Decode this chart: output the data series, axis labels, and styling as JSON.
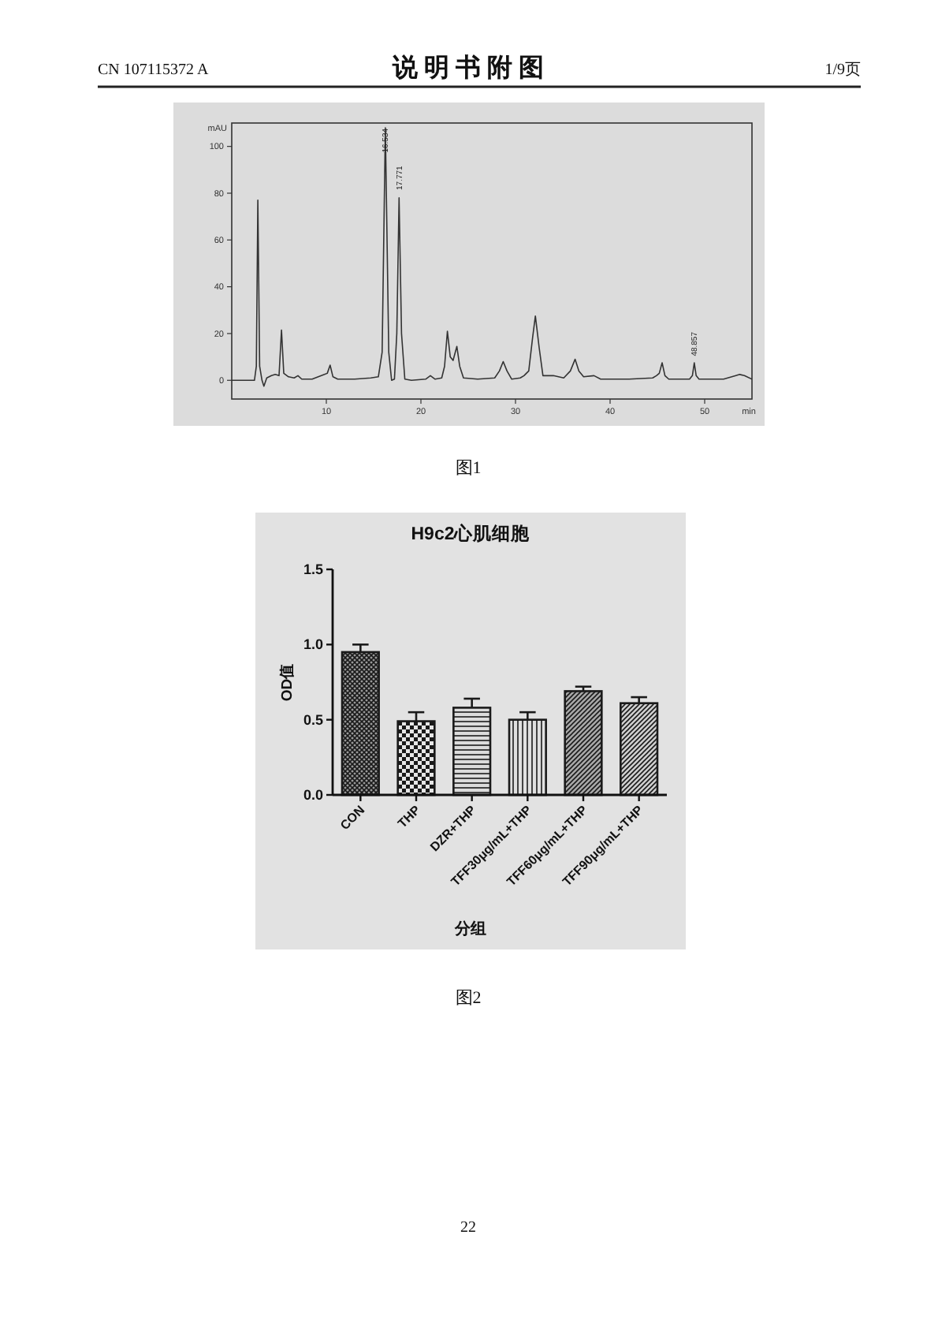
{
  "chart_data": [
    {
      "type": "line",
      "xlabel": "min",
      "ylabel": "mAU",
      "x": [
        0,
        2.4,
        2.6,
        2.76,
        2.95,
        3.2,
        3.4,
        3.7,
        4.2,
        4.6,
        5.0,
        5.26,
        5.5,
        6.0,
        6.6,
        7.0,
        7.4,
        8.5,
        9.8,
        10.1,
        10.4,
        10.7,
        11.2,
        13.0,
        14.7,
        15.5,
        15.9,
        16.24,
        16.6,
        16.9,
        17.2,
        17.45,
        17.69,
        17.95,
        18.3,
        19.0,
        20.5,
        21.0,
        21.5,
        22.2,
        22.5,
        22.8,
        23.1,
        23.4,
        23.8,
        24.1,
        24.5,
        26.0,
        27.8,
        28.3,
        28.7,
        29.1,
        29.6,
        30.5,
        30.9,
        31.4,
        31.8,
        32.1,
        32.5,
        32.9,
        34.0,
        35.1,
        35.8,
        36.3,
        36.7,
        37.2,
        38.3,
        39.0,
        42.0,
        44.5,
        44.9,
        45.2,
        45.5,
        45.8,
        46.2,
        48.4,
        48.7,
        48.9,
        49.1,
        49.4,
        52.0,
        53.3,
        53.7,
        54.2,
        55.0
      ],
      "series": [
        {
          "color": "#333333",
          "values": [
            0,
            0,
            6,
            77,
            6,
            0,
            -2.5,
            1,
            2,
            2.5,
            2,
            21.5,
            3,
            1.5,
            1,
            2,
            0.5,
            0.5,
            2.5,
            3,
            6.5,
            1.5,
            0.5,
            0.5,
            1,
            1.5,
            12,
            108,
            12,
            0,
            0.5,
            20,
            78,
            20,
            0.5,
            0,
            0.5,
            2,
            0.5,
            1,
            6,
            21,
            10,
            8.5,
            14.5,
            6,
            1,
            0.5,
            1,
            4,
            8,
            4,
            0.5,
            1,
            2,
            4,
            18,
            27.5,
            14,
            2,
            2,
            1,
            4,
            9,
            4,
            1.5,
            2,
            0.5,
            0.5,
            1,
            2,
            3,
            7.5,
            2,
            0.5,
            0.5,
            2,
            7.5,
            2,
            0.5,
            0.5,
            2,
            2.5,
            2,
            0.5
          ]
        }
      ],
      "xlim": [
        0,
        55
      ],
      "ylim": [
        -8,
        110
      ],
      "xticks": [
        10,
        20,
        30,
        40,
        50
      ],
      "yticks": [
        0,
        20,
        40,
        60,
        80,
        100
      ],
      "annotations": [
        "CN 107115372 A",
        "说 明 书 附 图",
        "1/9页",
        {
          "text": "16.534",
          "x": 16.24,
          "y": 96
        },
        {
          "text": "17.771",
          "x": 17.69,
          "y": 80
        },
        {
          "text": "48.857",
          "x": 48.9,
          "y": 9
        },
        "图1"
      ]
    },
    {
      "type": "bar",
      "title": "H9c2心肌细胞",
      "xlabel": "分组",
      "ylabel": "OD值",
      "categories": [
        "CON",
        "THP",
        "DZR+THP",
        "TFF30μg/mL+THP",
        "TFF60μg/mL+THP",
        "TFF90μg/mL+THP"
      ],
      "values": [
        0.95,
        0.49,
        0.58,
        0.5,
        0.69,
        0.61
      ],
      "errors": [
        0.05,
        0.06,
        0.06,
        0.05,
        0.03,
        0.04
      ],
      "colors": [
        "#1a1a1a",
        "#1a1a1a",
        "#1a1a1a",
        "#1a1a1a",
        "#1a1a1a",
        "#1a1a1a"
      ],
      "ylim": [
        0,
        1.5
      ],
      "yticks": [
        {
          "value": 0,
          "label": "0.0"
        },
        {
          "value": 0.5,
          "label": "0.5"
        },
        {
          "value": 1,
          "label": "1.0"
        },
        {
          "value": 1.5,
          "label": "1.5"
        }
      ],
      "annotations": [
        "图2",
        "22"
      ]
    }
  ]
}
